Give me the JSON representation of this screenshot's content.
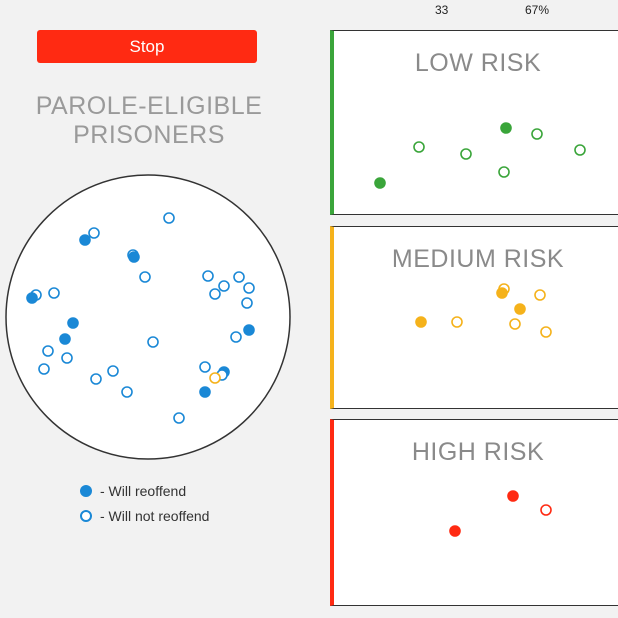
{
  "stats": {
    "count": "33",
    "percent": "67%"
  },
  "stop_label": "Stop",
  "pool": {
    "title_line1": "PAROLE-ELIGIBLE",
    "title_line2": "PRISONERS"
  },
  "legend": {
    "reoffend": "- Will reoffend",
    "not_reoffend": "- Will not reoffend"
  },
  "colors": {
    "blue": "#1a88d6",
    "green": "#3aa53a",
    "orange": "#f5b21b",
    "red": "#ff2a12"
  },
  "panels": {
    "low": "LOW RISK",
    "medium": "MEDIUM RISK",
    "high": "HIGH RISK"
  }
}
